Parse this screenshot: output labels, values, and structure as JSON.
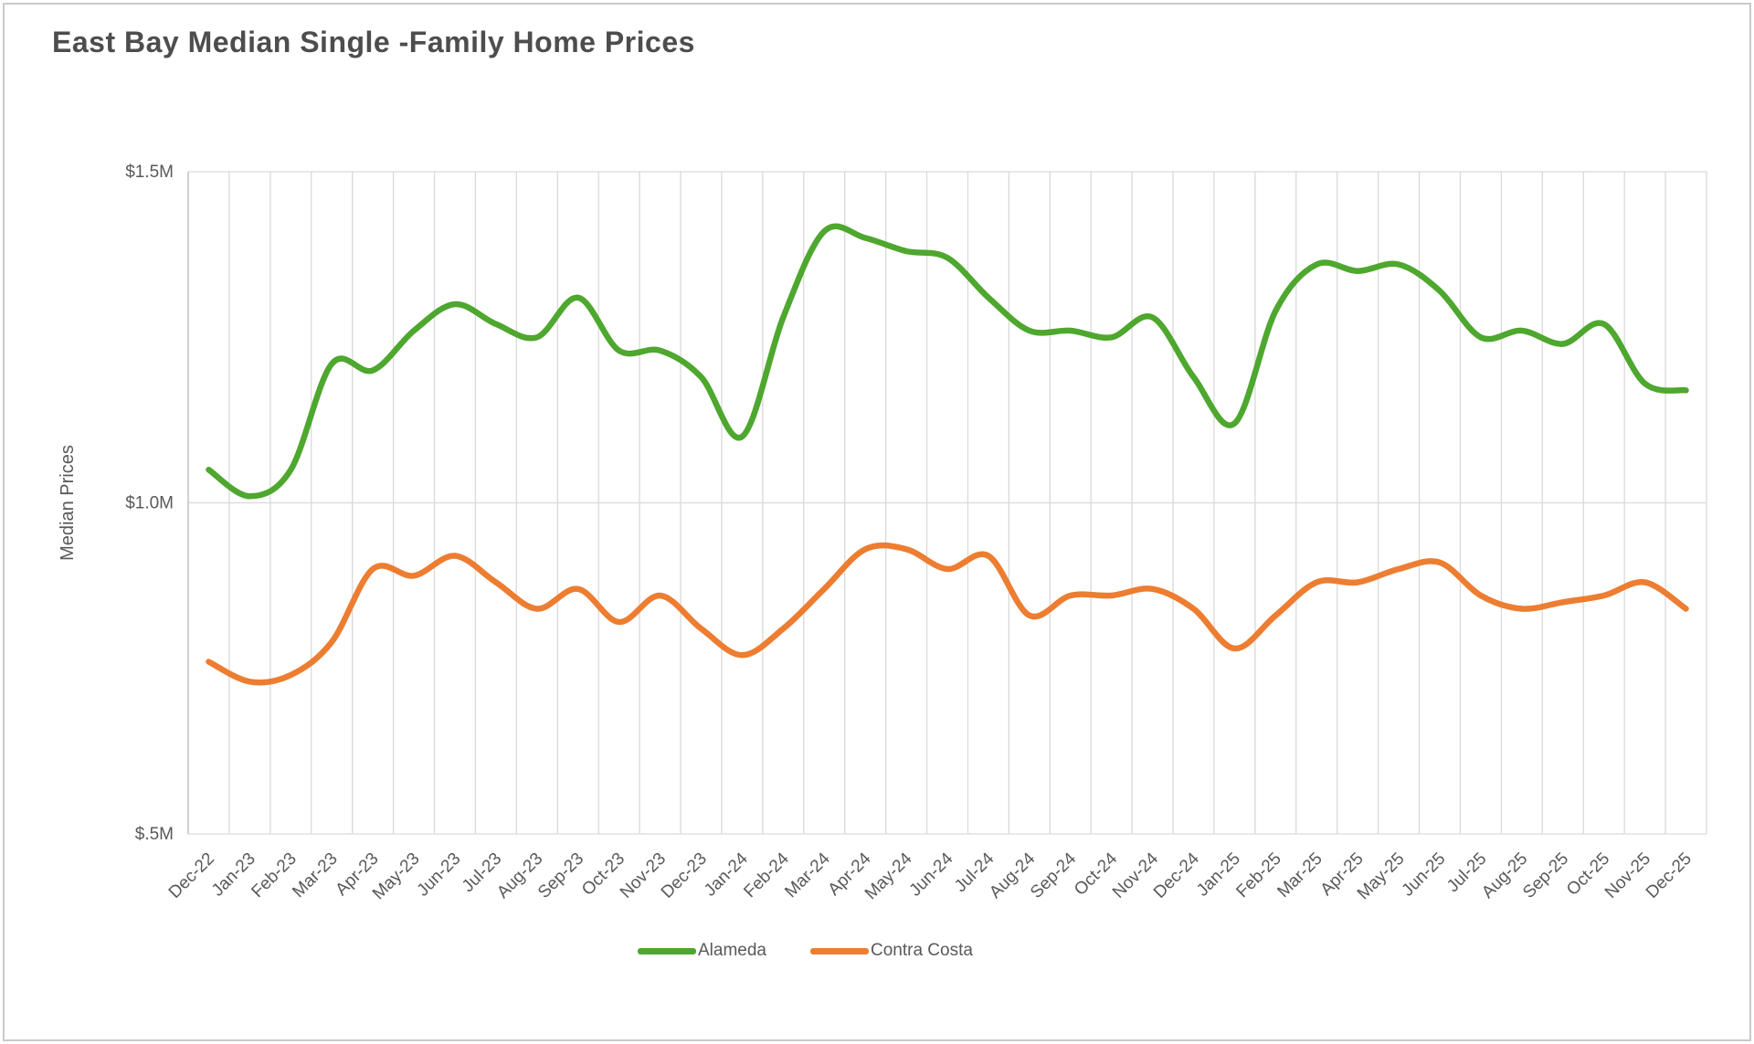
{
  "title": "East Bay Median Single -Family Home Prices",
  "chart_data": {
    "type": "line",
    "smooth": true,
    "title": "East Bay Median Single -Family Home Prices",
    "ylabel": "Median Prices",
    "xlabel": "",
    "unit": "$ millions",
    "ylim": [
      0.5,
      1.5
    ],
    "grid": "vertical-every-month, horizontal-at-ticks",
    "legend_position": "bottom-center",
    "y_ticks": [
      {
        "value": 1.5,
        "label": "$1.5M"
      },
      {
        "value": 1.0,
        "label": "$1.0M"
      },
      {
        "value": 0.5,
        "label": "$.5M"
      }
    ],
    "categories": [
      "Dec-22",
      "Jan-23",
      "Feb-23",
      "Mar-23",
      "Apr-23",
      "May-23",
      "Jun-23",
      "Jul-23",
      "Aug-23",
      "Sep-23",
      "Oct-23",
      "Nov-23",
      "Dec-23",
      "Jan-24",
      "Feb-24",
      "Mar-24",
      "Apr-24",
      "May-24",
      "Jun-24",
      "Jul-24",
      "Aug-24",
      "Sep-24",
      "Oct-24",
      "Nov-24",
      "Dec-24",
      "Jan-25",
      "Feb-25",
      "Mar-25",
      "Apr-25",
      "May-25",
      "Jun-25",
      "Jul-25",
      "Aug-25",
      "Sep-25",
      "Oct-25",
      "Nov-25",
      "Dec-25"
    ],
    "series": [
      {
        "name": "Alameda",
        "color": "#4ea72e",
        "values": [
          1.05,
          1.01,
          1.05,
          1.21,
          1.2,
          1.26,
          1.3,
          1.27,
          1.25,
          1.31,
          1.23,
          1.23,
          1.19,
          1.1,
          1.28,
          1.41,
          1.4,
          1.38,
          1.37,
          1.31,
          1.26,
          1.26,
          1.25,
          1.28,
          1.19,
          1.12,
          1.29,
          1.36,
          1.35,
          1.36,
          1.32,
          1.25,
          1.26,
          1.24,
          1.27,
          1.18,
          1.17
        ]
      },
      {
        "name": "Contra Costa",
        "color": "#ed7d31",
        "values": [
          0.76,
          0.73,
          0.74,
          0.79,
          0.9,
          0.89,
          0.92,
          0.88,
          0.84,
          0.87,
          0.82,
          0.86,
          0.81,
          0.77,
          0.81,
          0.87,
          0.93,
          0.93,
          0.9,
          0.92,
          0.83,
          0.86,
          0.86,
          0.87,
          0.84,
          0.78,
          0.83,
          0.88,
          0.88,
          0.9,
          0.91,
          0.86,
          0.84,
          0.85,
          0.86,
          0.88,
          0.84
        ]
      }
    ],
    "colors": {
      "grid": "#d9d9d9",
      "axis": "#bfbfbf",
      "tick_text": "#595959",
      "title_text": "#4d4d4d"
    }
  },
  "legend": {
    "alameda_label": "Alameda",
    "contra_costa_label": "Contra Costa"
  }
}
